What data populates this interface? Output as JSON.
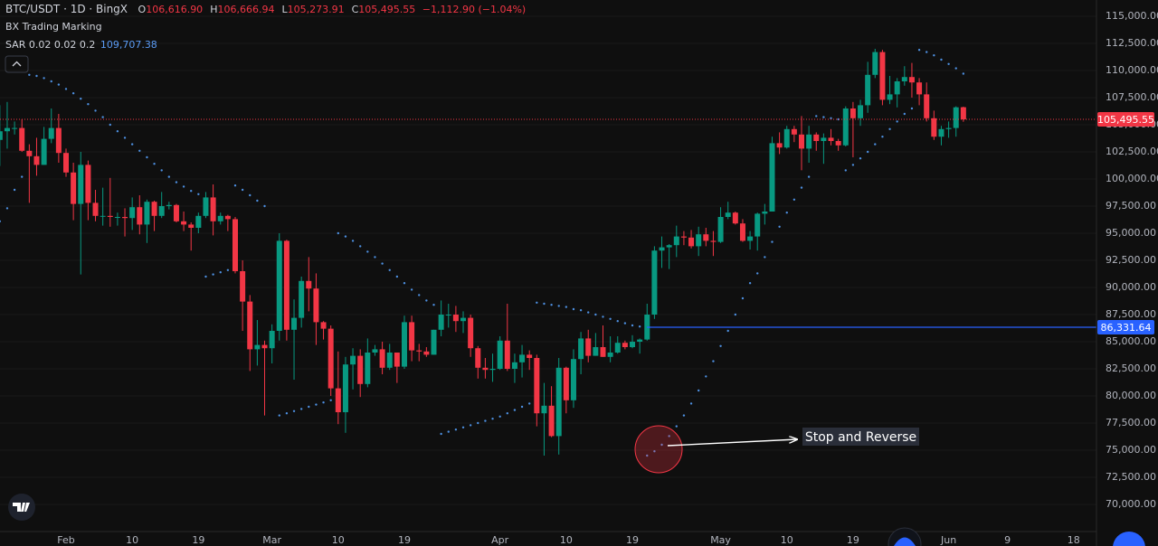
{
  "header": {
    "symbol": "BTC/USDT · 1D · BingX",
    "ohlc": [
      {
        "key": "O",
        "value": "106,616.90"
      },
      {
        "key": "H",
        "value": "106,666.94"
      },
      {
        "key": "L",
        "value": "105,273.91"
      },
      {
        "key": "C",
        "value": "105,495.55"
      }
    ],
    "change": "−1,112.90 (−1.04%)",
    "indicator": "BX Trading Marking"
  },
  "chart_data": {
    "type": "candlestick",
    "categories": [
      null,
      null,
      null,
      null,
      null,
      null,
      null,
      null,
      null,
      "Feb",
      null,
      null,
      null,
      null,
      null,
      null,
      null,
      null,
      "10",
      null,
      null,
      null,
      null,
      null,
      null,
      null,
      null,
      "19",
      null,
      null,
      null,
      null,
      null,
      null,
      null,
      null,
      null,
      "Mar",
      null,
      null,
      null,
      null,
      null,
      null,
      null,
      null,
      "10",
      null,
      null,
      null,
      null,
      null,
      null,
      null,
      null,
      "19",
      null,
      null,
      null,
      null,
      null,
      null,
      null,
      null,
      null,
      null,
      null,
      null,
      "Apr",
      null,
      null,
      null,
      null,
      null,
      null,
      null,
      null,
      "10",
      null,
      null,
      null,
      null,
      null,
      null,
      null,
      null,
      "19",
      null,
      null,
      null,
      null,
      null,
      null,
      null,
      null,
      null,
      null,
      null,
      "May",
      null,
      null,
      null,
      null,
      null,
      null,
      null,
      null,
      "10",
      null,
      null,
      null,
      null,
      null,
      null,
      null,
      null,
      "19",
      null,
      null,
      null,
      null,
      null,
      null,
      null,
      null,
      null,
      null,
      null,
      null,
      "Jun",
      null,
      null,
      null,
      null,
      null,
      null,
      null,
      "9",
      null,
      null,
      null,
      null,
      null,
      null,
      null,
      null,
      "18",
      null,
      null,
      null
    ],
    "open": [
      103600,
      104400,
      104700,
      104700,
      102600,
      102100,
      101300,
      103700,
      104700,
      102400,
      100600,
      97700,
      101300,
      97800,
      96600,
      96600,
      96500,
      96500,
      96400,
      97400,
      95800,
      97900,
      96600,
      97500,
      97600,
      96100,
      95800,
      95500,
      96600,
      98300,
      96100,
      96600,
      96300,
      91500,
      88700,
      84300,
      84700,
      84400,
      86000,
      94300,
      86100,
      87200,
      90600,
      89900,
      86800,
      86200,
      80700,
      78500,
      82900,
      83700,
      81100,
      84000,
      84300,
      82600,
      84000,
      82700,
      86800,
      84200,
      84100,
      83800,
      86100,
      87500,
      87500,
      86900,
      87200,
      84400,
      82600,
      82400,
      82500,
      85100,
      82500,
      83100,
      83800,
      83500,
      78400,
      79100,
      76300,
      82600,
      79600,
      83400,
      85300,
      83700,
      84500,
      83600,
      84000,
      84900,
      84500,
      85000,
      85200,
      87500,
      93400,
      93700,
      93900,
      94700,
      94600,
      93800,
      94900,
      94300,
      94200,
      96500,
      96900,
      95900,
      94300,
      94700,
      96800,
      97000,
      103300,
      102900,
      104600,
      104100,
      102800,
      104100,
      103500,
      103800,
      103500,
      103100,
      106500,
      105600,
      106800,
      109600,
      111700,
      107300,
      107800,
      109000,
      109400,
      108900,
      107800,
      105600,
      103900,
      104600,
      104700,
      106616.9,
      null,
      null,
      null,
      null,
      null,
      null,
      null,
      null,
      null,
      null,
      null,
      null,
      null,
      null,
      null,
      null,
      null,
      null
    ],
    "high": [
      106800,
      107100,
      105300,
      105500,
      103200,
      103800,
      104800,
      106500,
      106000,
      102800,
      101500,
      102500,
      101700,
      99000,
      99200,
      100100,
      96900,
      97300,
      98300,
      98500,
      98100,
      98000,
      98800,
      97900,
      97700,
      97000,
      96000,
      96900,
      98800,
      99500,
      96900,
      96700,
      96500,
      92500,
      89300,
      87000,
      85100,
      86600,
      95000,
      94400,
      88900,
      91000,
      92800,
      91300,
      86900,
      86500,
      84100,
      83600,
      84400,
      84300,
      85300,
      84700,
      85000,
      84800,
      84000,
      87400,
      87400,
      84800,
      84500,
      86100,
      88800,
      88500,
      88300,
      87800,
      87500,
      84600,
      83500,
      83900,
      85500,
      88500,
      83900,
      84700,
      84200,
      83800,
      81200,
      80900,
      83500,
      82700,
      84300,
      85900,
      86100,
      85800,
      86500,
      85500,
      85500,
      85100,
      85600,
      85300,
      88500,
      93800,
      94700,
      94000,
      95700,
      95200,
      95300,
      95600,
      95500,
      95200,
      97400,
      97900,
      97000,
      96300,
      95200,
      96900,
      97700,
      103900,
      104300,
      104900,
      104900,
      105800,
      104900,
      104300,
      104200,
      104600,
      103700,
      106700,
      107100,
      107300,
      110800,
      112000,
      111900,
      109500,
      109300,
      110400,
      110700,
      109300,
      108900,
      106300,
      104900,
      105300,
      106700,
      106666.94,
      null,
      null,
      null,
      null,
      null,
      null,
      null,
      null,
      null,
      null,
      null,
      null,
      null,
      null,
      null,
      null,
      null,
      null
    ],
    "low": [
      101200,
      102800,
      104100,
      102500,
      97800,
      100300,
      101300,
      103300,
      101500,
      100200,
      96200,
      91200,
      96200,
      96100,
      95700,
      95600,
      95700,
      94700,
      95300,
      94900,
      94100,
      95200,
      96400,
      97200,
      96000,
      95200,
      93400,
      95000,
      96400,
      94800,
      95800,
      95200,
      91300,
      86000,
      82300,
      82800,
      78200,
      83000,
      85100,
      85100,
      81500,
      86300,
      87800,
      84700,
      85200,
      80000,
      77400,
      76600,
      80600,
      79900,
      80800,
      83700,
      82000,
      82400,
      81200,
      82500,
      83200,
      83200,
      83600,
      83800,
      85500,
      86300,
      85900,
      85800,
      83600,
      81600,
      81600,
      81300,
      82400,
      82300,
      81200,
      81700,
      82400,
      77200,
      74500,
      76200,
      74600,
      78400,
      78900,
      82000,
      83100,
      83700,
      83600,
      83100,
      83900,
      84300,
      84400,
      83900,
      85100,
      87100,
      91800,
      91700,
      92800,
      93900,
      93600,
      92900,
      93800,
      92900,
      94100,
      96300,
      95800,
      94200,
      93500,
      93400,
      95800,
      97000,
      102300,
      102800,
      103400,
      100800,
      101500,
      102600,
      101400,
      103100,
      102600,
      103000,
      102000,
      104900,
      106100,
      109300,
      106800,
      106900,
      106600,
      108600,
      107500,
      106800,
      105300,
      103600,
      103100,
      103800,
      103900,
      105273.91,
      null,
      null,
      null,
      null,
      null,
      null,
      null,
      null,
      null,
      null,
      null,
      null,
      null,
      null,
      null,
      null,
      null,
      null
    ],
    "close": [
      104400,
      104700,
      104700,
      102600,
      102100,
      101300,
      103700,
      104700,
      102400,
      100600,
      97700,
      101300,
      97800,
      96600,
      96600,
      96500,
      96500,
      96400,
      97400,
      95800,
      97900,
      96600,
      97500,
      97600,
      96100,
      95800,
      95500,
      96600,
      98300,
      96100,
      96600,
      96300,
      91500,
      88700,
      84300,
      84700,
      84400,
      86000,
      94300,
      86100,
      87200,
      90600,
      89900,
      86800,
      86200,
      80700,
      78500,
      82900,
      83700,
      81100,
      84000,
      84300,
      82600,
      84000,
      82700,
      86800,
      84200,
      84100,
      83800,
      86100,
      87500,
      87500,
      86900,
      87200,
      84400,
      82600,
      82400,
      82500,
      85100,
      82500,
      83100,
      83800,
      83500,
      78400,
      79100,
      76300,
      82600,
      79600,
      83400,
      85300,
      83700,
      84500,
      83600,
      84000,
      84900,
      84500,
      85000,
      85200,
      87500,
      93400,
      93700,
      93900,
      94700,
      94600,
      93800,
      94900,
      94300,
      94200,
      96500,
      96900,
      95900,
      94300,
      94700,
      96800,
      97000,
      103300,
      102900,
      104600,
      104100,
      102800,
      104100,
      103500,
      103800,
      103500,
      103100,
      106500,
      105600,
      106800,
      109600,
      111700,
      107300,
      107800,
      109000,
      109400,
      108900,
      107800,
      105600,
      103900,
      104600,
      104700,
      106608.45,
      105495.55,
      null,
      null,
      null,
      null,
      null,
      null,
      null,
      null,
      null,
      null,
      null,
      null,
      null,
      null,
      null,
      null,
      null,
      null
    ],
    "up_color": "#089981",
    "down_color": "#f23645",
    "sar": {
      "name": "SAR 0.02 0.02 0.2",
      "color": "#4d8fe0",
      "last_label": "109,707.38",
      "values": [
        96100,
        97300,
        99000,
        100200,
        109600,
        109500,
        109300,
        109000,
        108700,
        108300,
        107900,
        107400,
        106900,
        106300,
        105700,
        105000,
        104400,
        103800,
        103200,
        102600,
        102000,
        101400,
        100800,
        100200,
        99700,
        99300,
        98900,
        98600,
        91000,
        91200,
        91400,
        91600,
        99400,
        99000,
        98500,
        98000,
        97500,
        null,
        78200,
        78400,
        78600,
        78800,
        79000,
        79200,
        79400,
        79600,
        95000,
        94700,
        94300,
        93800,
        93300,
        92800,
        92200,
        91600,
        91000,
        90400,
        89800,
        89300,
        88800,
        88400,
        76500,
        76700,
        76900,
        77100,
        77300,
        77500,
        77700,
        77900,
        78100,
        78400,
        78700,
        79000,
        79300,
        88600,
        88500,
        88400,
        88300,
        88200,
        88000,
        87900,
        87700,
        87500,
        87300,
        87100,
        86900,
        86700,
        86500,
        86400,
        74500,
        74900,
        75500,
        76300,
        77200,
        78200,
        79300,
        80500,
        81800,
        83200,
        84600,
        86000,
        87500,
        89000,
        90400,
        91300,
        92800,
        94200,
        95600,
        96900,
        98100,
        99200,
        100200,
        105800,
        105700,
        105600,
        105500,
        100800,
        101300,
        101900,
        102500,
        103200,
        103900,
        104600,
        105300,
        106000,
        106500,
        111900,
        111700,
        111400,
        111000,
        110600,
        110200,
        109707.38,
        null,
        null,
        null,
        null,
        null,
        null,
        null,
        null,
        null,
        null,
        null,
        null,
        null,
        null,
        null,
        null,
        null,
        null
      ]
    },
    "price_line": {
      "value": 105495.55,
      "label": "105,495.55",
      "color": "#f23645"
    },
    "level_line": {
      "value": 86331.64,
      "label": "86,331.64",
      "color": "#2962ff"
    },
    "annotation": "Stop and Reverse",
    "ylim": [
      66167,
      116500
    ],
    "yticks": [
      {
        "value": 70000,
        "label": "70,000.00"
      },
      {
        "value": 72500,
        "label": "72,500.00"
      },
      {
        "value": 75000,
        "label": "75,000.00"
      },
      {
        "value": 77500,
        "label": "77,500.00"
      },
      {
        "value": 80000,
        "label": "80,000.00"
      },
      {
        "value": 82500,
        "label": "82,500.00"
      },
      {
        "value": 85000,
        "label": "85,000.00"
      },
      {
        "value": 87500,
        "label": "87,500.00"
      },
      {
        "value": 90000,
        "label": "90,000.00"
      },
      {
        "value": 92500,
        "label": "92,500.00"
      },
      {
        "value": 95000,
        "label": "95,000.00"
      },
      {
        "value": 97500,
        "label": "97,500.00"
      },
      {
        "value": 100000,
        "label": "100,000.00"
      },
      {
        "value": 102500,
        "label": "102,500.00"
      },
      {
        "value": 105000,
        "label": "105,000.00"
      },
      {
        "value": 107500,
        "label": "107,500.00"
      },
      {
        "value": 110000,
        "label": "110,000.00"
      },
      {
        "value": 112500,
        "label": "112,500.00"
      },
      {
        "value": 115000,
        "label": "115,000.00"
      }
    ],
    "grid": true
  }
}
